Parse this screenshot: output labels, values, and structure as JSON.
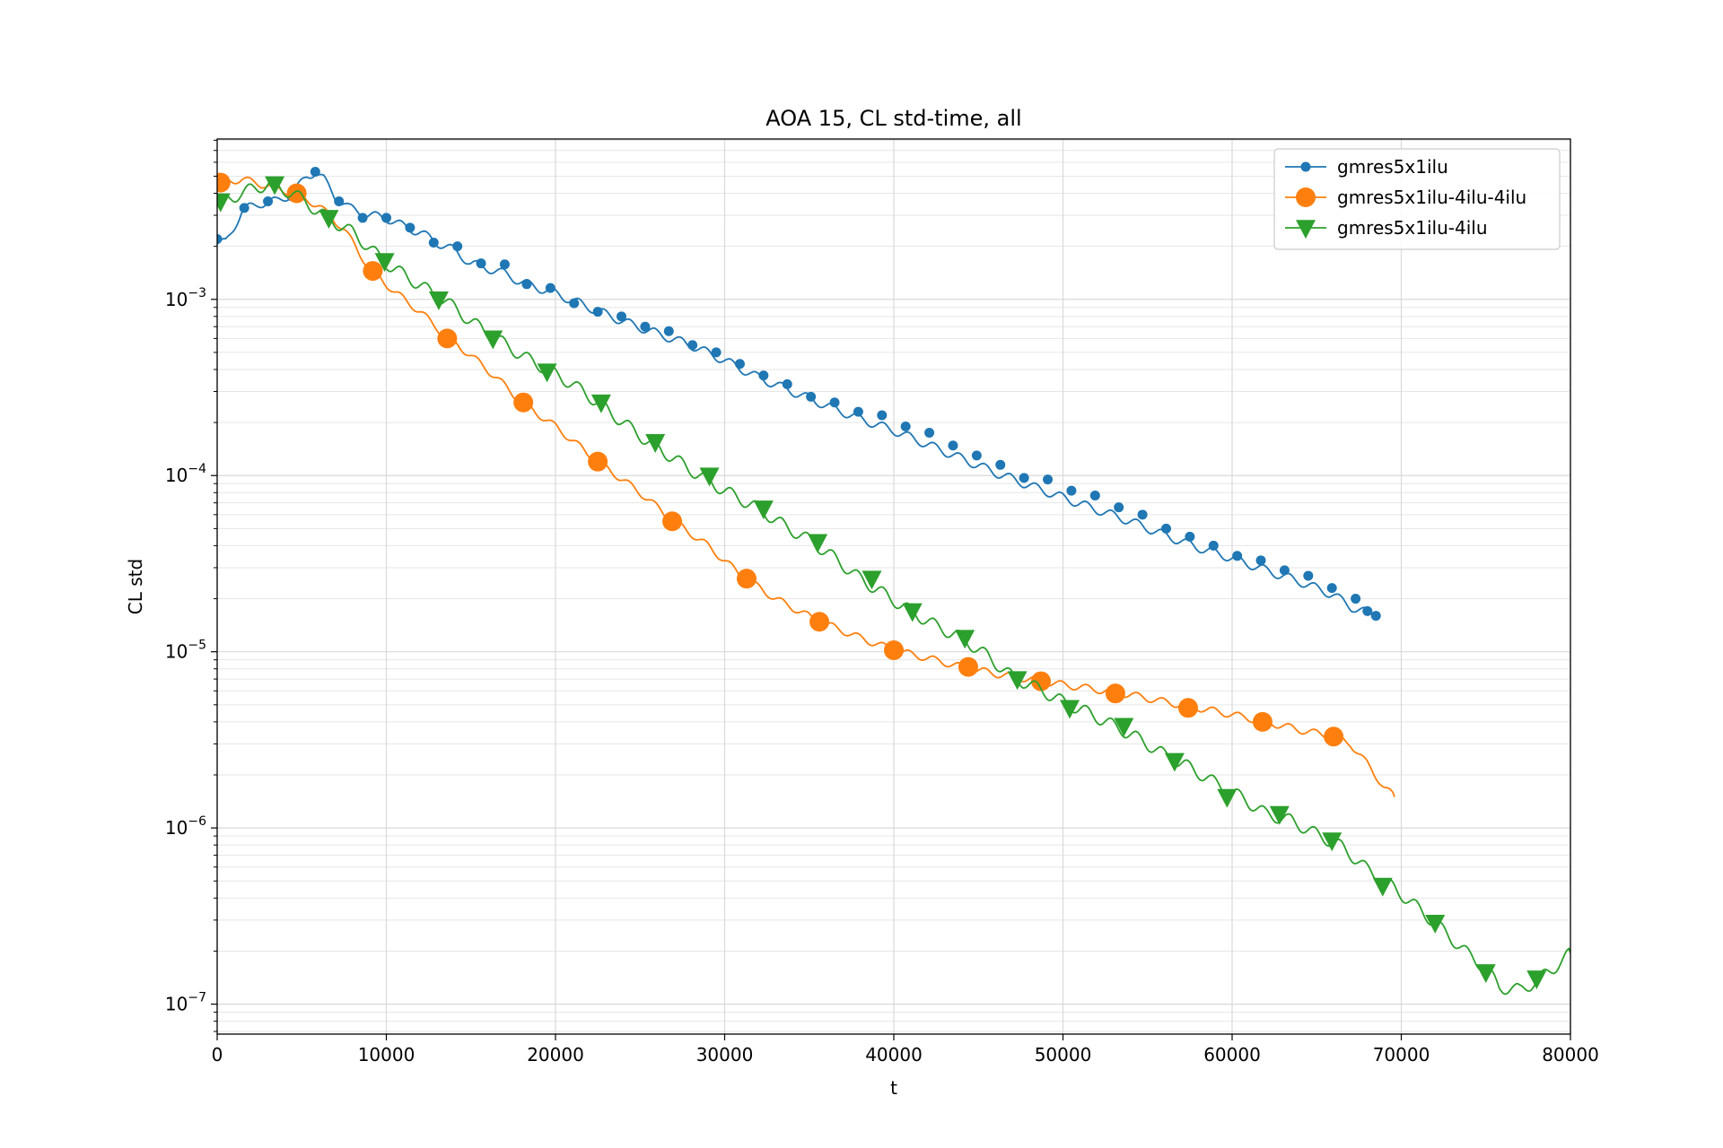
{
  "chart_data": {
    "type": "line",
    "title": "AOA 15, CL std-time, all",
    "xlabel": "t",
    "ylabel": "CL std",
    "xlim": [
      0,
      80000
    ],
    "ylim_log10": [
      -7.17,
      -2.09
    ],
    "yscale": "log",
    "grid": "major and minor",
    "legend_position": "upper right",
    "x_ticks": [
      0,
      10000,
      20000,
      30000,
      40000,
      50000,
      60000,
      70000,
      80000
    ],
    "x_tick_labels": [
      "0",
      "10000",
      "20000",
      "30000",
      "40000",
      "50000",
      "60000",
      "70000",
      "80000"
    ],
    "y_ticks_log10": [
      -7,
      -6,
      -5,
      -4,
      -3
    ],
    "y_tick_labels": [
      {
        "base": "10",
        "exp": "−7"
      },
      {
        "base": "10",
        "exp": "−6"
      },
      {
        "base": "10",
        "exp": "−5"
      },
      {
        "base": "10",
        "exp": "−4"
      },
      {
        "base": "10",
        "exp": "−3"
      }
    ],
    "series": [
      {
        "name": "gmres5x1ilu",
        "color": "#1f77b4",
        "marker": "circle",
        "marker_size": "small",
        "wobble": 0.025,
        "line_points": [
          [
            0,
            0.00205
          ],
          [
            500,
            0.0021
          ],
          [
            1500,
            0.0032
          ],
          [
            2500,
            0.0035
          ],
          [
            3500,
            0.0036
          ],
          [
            4500,
            0.004
          ],
          [
            5300,
            0.005
          ],
          [
            5800,
            0.0053
          ],
          [
            6300,
            0.0048
          ],
          [
            7000,
            0.0038
          ],
          [
            7800,
            0.0033
          ],
          [
            9000,
            0.003
          ],
          [
            10000,
            0.0029
          ],
          [
            11000,
            0.0026
          ],
          [
            12000,
            0.0024
          ],
          [
            13000,
            0.0021
          ],
          [
            14000,
            0.0019
          ],
          [
            15000,
            0.0016
          ],
          [
            16000,
            0.0015
          ],
          [
            17000,
            0.0014
          ],
          [
            18000,
            0.00125
          ],
          [
            20000,
            0.00108
          ],
          [
            22000,
            0.0009
          ],
          [
            24000,
            0.00075
          ],
          [
            26000,
            0.00064
          ],
          [
            28000,
            0.00055
          ],
          [
            30000,
            0.00045
          ],
          [
            32000,
            0.00036
          ],
          [
            34000,
            0.0003
          ],
          [
            36000,
            0.00025
          ],
          [
            38000,
            0.00021
          ],
          [
            40000,
            0.00018
          ],
          [
            42000,
            0.00015
          ],
          [
            44000,
            0.000125
          ],
          [
            46000,
            0.000104
          ],
          [
            48000,
            8.8e-05
          ],
          [
            50000,
            7.5e-05
          ],
          [
            52000,
            6.4e-05
          ],
          [
            54000,
            5.5e-05
          ],
          [
            56000,
            4.6e-05
          ],
          [
            58000,
            3.9e-05
          ],
          [
            60000,
            3.4e-05
          ],
          [
            62000,
            2.9e-05
          ],
          [
            64000,
            2.5e-05
          ],
          [
            66000,
            2.1e-05
          ],
          [
            67000,
            1.8e-05
          ],
          [
            68500,
            1.6e-05
          ]
        ],
        "markers": [
          [
            0,
            0.0022
          ],
          [
            1600,
            0.0033
          ],
          [
            3000,
            0.0036
          ],
          [
            4400,
            0.00385
          ],
          [
            5800,
            0.0053
          ],
          [
            7200,
            0.0036
          ],
          [
            8600,
            0.0029
          ],
          [
            10000,
            0.0029
          ],
          [
            11400,
            0.00255
          ],
          [
            12800,
            0.0021
          ],
          [
            14200,
            0.002
          ],
          [
            15600,
            0.0016
          ],
          [
            17000,
            0.00158
          ],
          [
            18300,
            0.00122
          ],
          [
            19700,
            0.00116
          ],
          [
            21100,
            0.00095
          ],
          [
            22500,
            0.00085
          ],
          [
            23900,
            0.0008
          ],
          [
            25300,
            0.0007
          ],
          [
            26700,
            0.00066
          ],
          [
            28100,
            0.00055
          ],
          [
            29500,
            0.0005
          ],
          [
            30900,
            0.00043
          ],
          [
            32300,
            0.00037
          ],
          [
            33700,
            0.00033
          ],
          [
            35100,
            0.00028
          ],
          [
            36500,
            0.00026
          ],
          [
            37900,
            0.00023
          ],
          [
            39300,
            0.00022
          ],
          [
            40700,
            0.00019
          ],
          [
            42100,
            0.000175
          ],
          [
            43500,
            0.000148
          ],
          [
            44900,
            0.00013
          ],
          [
            46300,
            0.000115
          ],
          [
            47700,
            9.7e-05
          ],
          [
            49100,
            9.5e-05
          ],
          [
            50500,
            8.2e-05
          ],
          [
            51900,
            7.7e-05
          ],
          [
            53300,
            6.6e-05
          ],
          [
            54700,
            6e-05
          ],
          [
            56100,
            5e-05
          ],
          [
            57500,
            4.5e-05
          ],
          [
            58900,
            4e-05
          ],
          [
            60300,
            3.5e-05
          ],
          [
            61700,
            3.3e-05
          ],
          [
            63100,
            2.9e-05
          ],
          [
            64500,
            2.7e-05
          ],
          [
            65900,
            2.3e-05
          ],
          [
            67300,
            2e-05
          ],
          [
            68000,
            1.7e-05
          ],
          [
            68500,
            1.6e-05
          ]
        ]
      },
      {
        "name": "gmres5x1ilu-4ilu-4ilu",
        "color": "#ff7f0e",
        "marker": "circle",
        "marker_size": "large",
        "wobble": 0.02,
        "line_points": [
          [
            0,
            0.0046
          ],
          [
            1500,
            0.0048
          ],
          [
            3000,
            0.0044
          ],
          [
            4500,
            0.004
          ],
          [
            6000,
            0.0034
          ],
          [
            7500,
            0.0025
          ],
          [
            9000,
            0.0015
          ],
          [
            10500,
            0.0011
          ],
          [
            12000,
            0.00085
          ],
          [
            13500,
            0.00062
          ],
          [
            15000,
            0.00048
          ],
          [
            16500,
            0.00036
          ],
          [
            18000,
            0.00026
          ],
          [
            20000,
            0.00019
          ],
          [
            22500,
            0.00012
          ],
          [
            25000,
            8e-05
          ],
          [
            27000,
            5.5e-05
          ],
          [
            29000,
            4e-05
          ],
          [
            31000,
            2.7e-05
          ],
          [
            33000,
            2e-05
          ],
          [
            35500,
            1.5e-05
          ],
          [
            38000,
            1.2e-05
          ],
          [
            40000,
            1.02e-05
          ],
          [
            42000,
            9.2e-06
          ],
          [
            44000,
            8.2e-06
          ],
          [
            46000,
            7.5e-06
          ],
          [
            48000,
            7e-06
          ],
          [
            50000,
            6.5e-06
          ],
          [
            52000,
            6.1e-06
          ],
          [
            54000,
            5.7e-06
          ],
          [
            56000,
            5.2e-06
          ],
          [
            58000,
            4.8e-06
          ],
          [
            60000,
            4.4e-06
          ],
          [
            62000,
            4e-06
          ],
          [
            64000,
            3.6e-06
          ],
          [
            66000,
            3.3e-06
          ],
          [
            67000,
            3e-06
          ],
          [
            68000,
            2.3e-06
          ],
          [
            69000,
            1.7e-06
          ],
          [
            69600,
            1.5e-06
          ]
        ],
        "markers": [
          [
            200,
            0.0046
          ],
          [
            4700,
            0.004
          ],
          [
            9200,
            0.00145
          ],
          [
            13600,
            0.0006
          ],
          [
            18100,
            0.00026
          ],
          [
            22500,
            0.00012
          ],
          [
            26900,
            5.5e-05
          ],
          [
            31300,
            2.6e-05
          ],
          [
            35600,
            1.48e-05
          ],
          [
            40000,
            1.02e-05
          ],
          [
            44400,
            8.2e-06
          ],
          [
            48700,
            6.8e-06
          ],
          [
            53100,
            5.8e-06
          ],
          [
            57400,
            4.8e-06
          ],
          [
            61800,
            4e-06
          ],
          [
            66000,
            3.3e-06
          ]
        ]
      },
      {
        "name": "gmres5x1ilu-4ilu",
        "color": "#2ca02c",
        "marker": "triangle-down",
        "marker_size": "large",
        "wobble": 0.035,
        "line_points": [
          [
            0,
            0.0035
          ],
          [
            2000,
            0.0042
          ],
          [
            3000,
            0.0045
          ],
          [
            4500,
            0.004
          ],
          [
            6500,
            0.0029
          ],
          [
            8000,
            0.0024
          ],
          [
            10000,
            0.0016
          ],
          [
            12000,
            0.0012
          ],
          [
            13500,
            0.00098
          ],
          [
            15000,
            0.00075
          ],
          [
            16500,
            0.0006
          ],
          [
            18000,
            0.00048
          ],
          [
            19500,
            0.0004
          ],
          [
            21000,
            0.00033
          ],
          [
            22500,
            0.00026
          ],
          [
            24000,
            0.0002
          ],
          [
            25500,
            0.000155
          ],
          [
            27000,
            0.000125
          ],
          [
            28500,
            0.0001
          ],
          [
            30000,
            8.2e-05
          ],
          [
            32000,
            6.5e-05
          ],
          [
            33500,
            5.2e-05
          ],
          [
            35000,
            4.3e-05
          ],
          [
            36500,
            3.4e-05
          ],
          [
            38000,
            2.6e-05
          ],
          [
            39500,
            2.1e-05
          ],
          [
            41000,
            1.7e-05
          ],
          [
            42500,
            1.4e-05
          ],
          [
            44000,
            1.2e-05
          ],
          [
            45500,
            9.5e-06
          ],
          [
            47000,
            7.2e-06
          ],
          [
            48500,
            6.2e-06
          ],
          [
            50000,
            5.2e-06
          ],
          [
            51500,
            4.5e-06
          ],
          [
            53000,
            3.8e-06
          ],
          [
            54500,
            3.2e-06
          ],
          [
            56000,
            2.6e-06
          ],
          [
            57500,
            2.2e-06
          ],
          [
            59000,
            1.8e-06
          ],
          [
            60500,
            1.5e-06
          ],
          [
            62000,
            1.2e-06
          ],
          [
            63500,
            1.1e-06
          ],
          [
            65000,
            9.2e-07
          ],
          [
            66500,
            7.8e-07
          ],
          [
            68000,
            5.8e-07
          ],
          [
            69500,
            4.6e-07
          ],
          [
            71000,
            3.5e-07
          ],
          [
            72500,
            2.6e-07
          ],
          [
            74000,
            1.9e-07
          ],
          [
            75000,
            1.6e-07
          ],
          [
            75800,
            1.25e-07
          ],
          [
            77000,
            1.2e-07
          ],
          [
            78000,
            1.35e-07
          ],
          [
            79000,
            1.6e-07
          ],
          [
            80000,
            1.95e-07
          ]
        ],
        "markers": [
          [
            200,
            0.0036
          ],
          [
            3400,
            0.0045
          ],
          [
            6600,
            0.0029
          ],
          [
            9900,
            0.00165
          ],
          [
            13100,
            0.001
          ],
          [
            16300,
            0.0006
          ],
          [
            19500,
            0.00039
          ],
          [
            22700,
            0.00026
          ],
          [
            25900,
            0.000155
          ],
          [
            29100,
            0.0001
          ],
          [
            32300,
            6.5e-05
          ],
          [
            35500,
            4.2e-05
          ],
          [
            38700,
            2.6e-05
          ],
          [
            41100,
            1.7e-05
          ],
          [
            44200,
            1.2e-05
          ],
          [
            47300,
            7e-06
          ],
          [
            50400,
            4.8e-06
          ],
          [
            53600,
            3.8e-06
          ],
          [
            56600,
            2.4e-06
          ],
          [
            59700,
            1.5e-06
          ],
          [
            62800,
            1.2e-06
          ],
          [
            65900,
            8.5e-07
          ],
          [
            68900,
            4.7e-07
          ],
          [
            72000,
            2.9e-07
          ],
          [
            75000,
            1.52e-07
          ],
          [
            78000,
            1.4e-07
          ]
        ]
      }
    ]
  }
}
